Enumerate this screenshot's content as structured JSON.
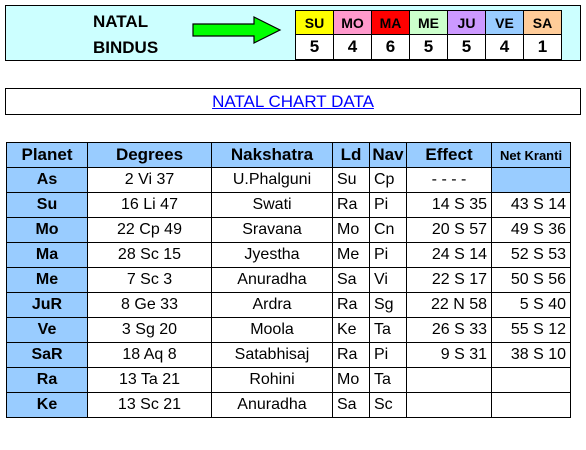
{
  "bindus": {
    "label_line1": "NATAL",
    "label_line2": "BINDUS",
    "planets": [
      {
        "name": "SU",
        "value": "5",
        "color": "#ffff00"
      },
      {
        "name": "MO",
        "value": "4",
        "color": "#ff99cc"
      },
      {
        "name": "MA",
        "value": "6",
        "color": "#ff0000"
      },
      {
        "name": "ME",
        "value": "5",
        "color": "#ccffcc"
      },
      {
        "name": "JU",
        "value": "5",
        "color": "#cc99ff"
      },
      {
        "name": "VE",
        "value": "4",
        "color": "#99ccff"
      },
      {
        "name": "SA",
        "value": "1",
        "color": "#ffcc99"
      }
    ]
  },
  "title": "NATAL CHART DATA",
  "table": {
    "headers": [
      "Planet",
      "Degrees",
      "Nakshatra",
      "Ld",
      "Nav",
      "Effect",
      "Net Kranti"
    ],
    "rows": [
      {
        "planet": "As",
        "degrees": "2 Vi 37",
        "nakshatra": "U.Phalguni",
        "ld": "Su",
        "nav": "Cp",
        "effect": "- - - -",
        "kranti": ""
      },
      {
        "planet": "Su",
        "degrees": "16 Li 47",
        "nakshatra": "Swati",
        "ld": "Ra",
        "nav": "Pi",
        "effect": "14 S 35",
        "kranti": "43 S 14"
      },
      {
        "planet": "Mo",
        "degrees": "22 Cp 49",
        "nakshatra": "Sravana",
        "ld": "Mo",
        "nav": "Cn",
        "effect": "20 S 57",
        "kranti": "49 S 36"
      },
      {
        "planet": "Ma",
        "degrees": "28 Sc 15",
        "nakshatra": "Jyestha",
        "ld": "Me",
        "nav": "Pi",
        "effect": "24 S 14",
        "kranti": "52 S 53"
      },
      {
        "planet": "Me",
        "degrees": "7 Sc 3",
        "nakshatra": "Anuradha",
        "ld": "Sa",
        "nav": "Vi",
        "effect": "22 S 17",
        "kranti": "50 S 56"
      },
      {
        "planet": "JuR",
        "degrees": "8 Ge 33",
        "nakshatra": "Ardra",
        "ld": "Ra",
        "nav": "Sg",
        "effect": "22 N 58",
        "kranti": "5 S 40"
      },
      {
        "planet": "Ve",
        "degrees": "3 Sg 20",
        "nakshatra": "Moola",
        "ld": "Ke",
        "nav": "Ta",
        "effect": "26 S 33",
        "kranti": "55 S 12"
      },
      {
        "planet": "SaR",
        "degrees": "18 Aq 8",
        "nakshatra": "Satabhisaj",
        "ld": "Ra",
        "nav": "Pi",
        "effect": "9 S 31",
        "kranti": "38 S 10"
      },
      {
        "planet": "Ra",
        "degrees": "13 Ta 21",
        "nakshatra": "Rohini",
        "ld": "Mo",
        "nav": "Ta",
        "effect": "",
        "kranti": ""
      },
      {
        "planet": "Ke",
        "degrees": "13 Sc 21",
        "nakshatra": "Anuradha",
        "ld": "Sa",
        "nav": "Sc",
        "effect": "",
        "kranti": ""
      }
    ]
  },
  "colors": {
    "header_bg": "#99ccff",
    "bindus_bg": "#ccffff",
    "arrow": "#00ff00",
    "link": "#0000ff"
  }
}
